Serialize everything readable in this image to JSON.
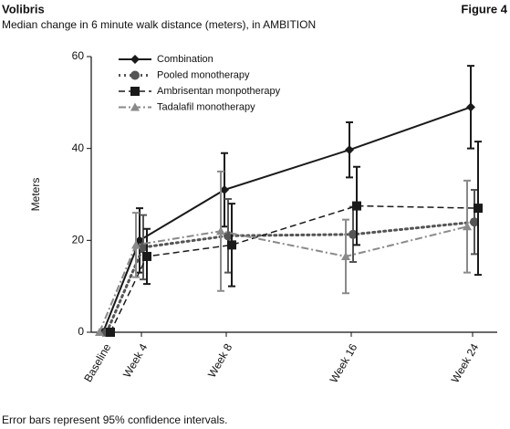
{
  "chart_data": {
    "type": "line",
    "header": "Volibris",
    "figure_label": "Figure 4",
    "title": "Median change in 6 minute walk distance (meters), in AMBITION",
    "y_label": "Meters",
    "note": "Error bars represent 95% confidence intervals.",
    "categories": [
      "Baseline",
      "Week 4",
      "Week 8",
      "Week 16",
      "Week 24"
    ],
    "ylim": [
      0,
      60
    ],
    "yticks": [
      0,
      20,
      40,
      60
    ],
    "legend": "upper left",
    "series": [
      {
        "name": "Combination",
        "color": "#1a1a1a",
        "dash": "solid",
        "marker": "diamond",
        "values": [
          0,
          20,
          31,
          39.7,
          49
        ],
        "errors": [
          0,
          7,
          8,
          6,
          9
        ]
      },
      {
        "name": "Pooled monotherapy",
        "color": "#555555",
        "dash": "dotted",
        "marker": "circle",
        "values": [
          0,
          18.5,
          21,
          21.3,
          24
        ],
        "errors": [
          0,
          7,
          8,
          6,
          7
        ]
      },
      {
        "name": "Ambrisentan monpotherapy",
        "color": "#1a1a1a",
        "dash": "dashed",
        "marker": "square",
        "values": [
          0,
          16.5,
          19,
          27.5,
          27
        ],
        "errors": [
          0,
          6,
          9,
          8.5,
          14.5
        ]
      },
      {
        "name": "Tadalafil monotherapy",
        "color": "#8a8a8a",
        "dash": "dashdot",
        "marker": "triangle",
        "values": [
          0,
          19,
          22,
          16.5,
          23
        ],
        "errors": [
          0,
          7,
          13,
          8,
          10
        ]
      }
    ]
  }
}
